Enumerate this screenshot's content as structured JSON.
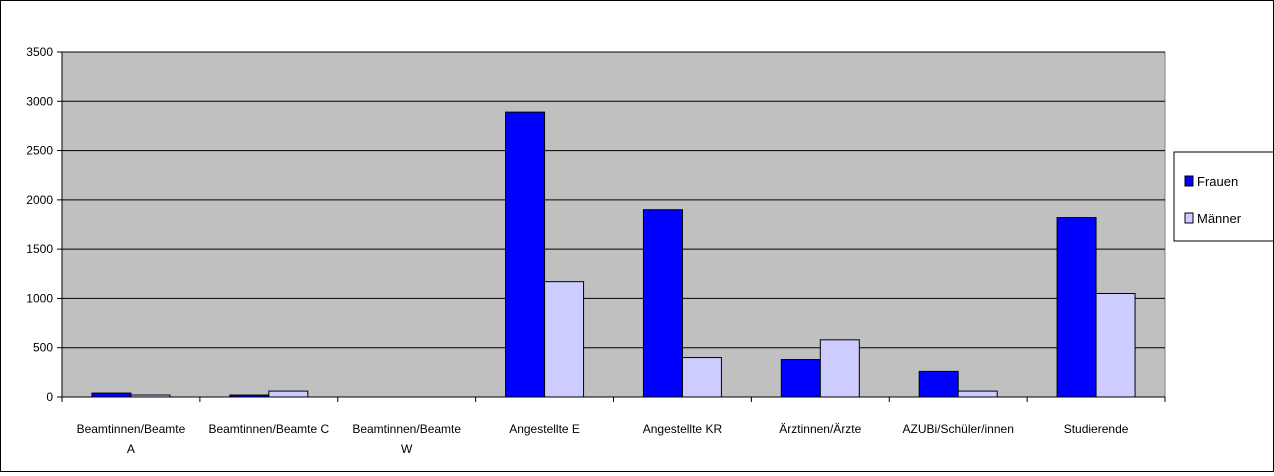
{
  "chart_data": {
    "type": "bar",
    "categories": [
      [
        "Beamtinnen/Beamte",
        "A"
      ],
      [
        "Beamtinnen/Beamte C"
      ],
      [
        "Beamtinnen/Beamte",
        "W"
      ],
      [
        "Angestellte E"
      ],
      [
        "Angestellte KR"
      ],
      [
        "Ärztinnen/Ärzte"
      ],
      [
        "AZUBi/Schüler/innen"
      ],
      [
        "Studierende"
      ]
    ],
    "series": [
      {
        "name": "Frauen",
        "color": "#0000ff",
        "values": [
          40,
          20,
          0,
          2890,
          1900,
          380,
          260,
          1820
        ]
      },
      {
        "name": "Männer",
        "color": "#ccccff",
        "values": [
          20,
          60,
          0,
          1170,
          400,
          580,
          60,
          1050
        ]
      }
    ],
    "ylim": [
      0,
      3500
    ],
    "yticks": [
      "0",
      "500",
      "1000",
      "1500",
      "2000",
      "2500",
      "3000",
      "3500"
    ],
    "grid": true,
    "plot_background": "#c0c0c0",
    "legend_position": "right"
  }
}
